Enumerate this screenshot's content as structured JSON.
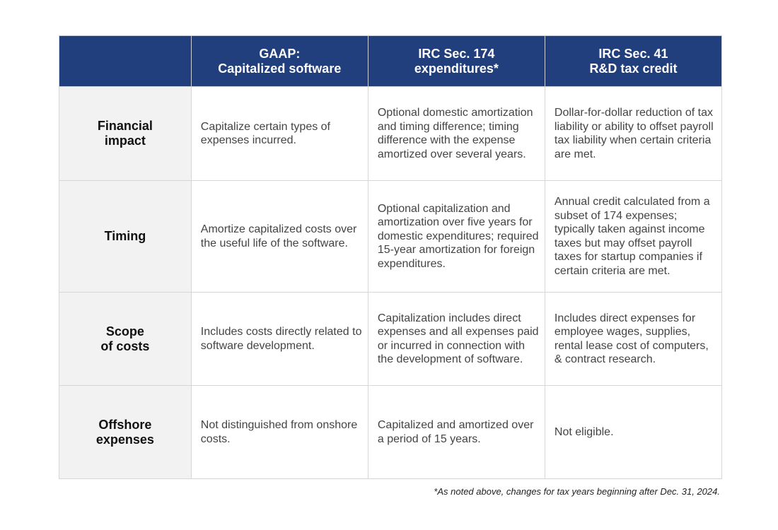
{
  "colors": {
    "header_bg": "#213e7d",
    "header_text": "#ffffff",
    "row_header_bg": "#f2f2f2",
    "border": "#d6d6d6",
    "body_text": "#444444"
  },
  "table": {
    "columns": [
      {
        "line1": "",
        "line2": ""
      },
      {
        "line1": "GAAP:",
        "line2": "Capitalized software"
      },
      {
        "line1": "IRC Sec. 174",
        "line2": "expenditures*"
      },
      {
        "line1": "IRC Sec. 41",
        "line2": "R&D tax credit"
      }
    ],
    "rows": [
      {
        "label_line1": "Financial",
        "label_line2": "impact",
        "gaap": "Capitalize certain types of expenses incurred.",
        "sec174": "Optional domestic amortization and timing difference; timing difference with the expense amortized over several years.",
        "sec41": "Dollar-for-dollar reduction of tax liability or ability to offset payroll tax liability when certain criteria are met."
      },
      {
        "label_line1": "Timing",
        "label_line2": "",
        "gaap": "Amortize capitalized costs over the useful life of the software.",
        "sec174": "Optional capitalization and amortization over five years for domestic expenditures; required 15-year amortization for foreign expenditures.",
        "sec41": "Annual credit calculated from a subset of 174 expenses; typically taken against income taxes but may offset payroll taxes for startup companies if certain criteria are met."
      },
      {
        "label_line1": "Scope",
        "label_line2": "of costs",
        "gaap": "Includes costs directly related to software development.",
        "sec174": "Capitalization includes direct expenses and all expenses paid or incurred in connection with the development of software.",
        "sec41": "Includes direct expenses for employee wages, supplies, rental lease cost of computers, & contract research."
      },
      {
        "label_line1": "Offshore",
        "label_line2": "expenses",
        "gaap": "Not distinguished from onshore costs.",
        "sec174": "Capitalized and amortized over a period of 15 years.",
        "sec41": "Not eligible."
      }
    ]
  },
  "footnote": "*As noted above, changes for tax years beginning after Dec. 31, 2024."
}
